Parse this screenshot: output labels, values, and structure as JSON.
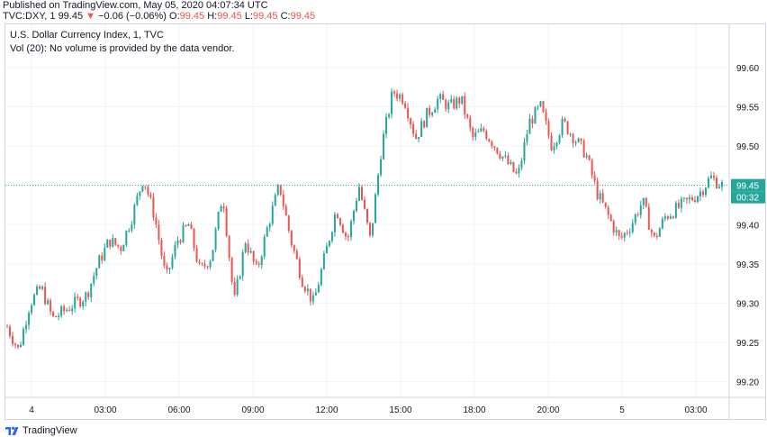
{
  "header": {
    "published": "Published on TradingView.com, May 05, 2020 04:07:34 UTC",
    "symbol": "TVC:DXY, 1",
    "last": "99.45",
    "change_arrow": "▼",
    "change": "−0.06 (−0.06%)",
    "o_label": "O:",
    "o_value": "99.45",
    "h_label": "H:",
    "h_value": "99.45",
    "l_label": "L:",
    "l_value": "99.45",
    "c_label": "C:",
    "c_value": "99.45"
  },
  "legend": {
    "title": "U.S. Dollar Currency Index, 1, TVC",
    "volume_note": "Vol (20): No volume is provided by the data vendor."
  },
  "footer": {
    "brand": "TradingView",
    "logo_icon": "tradingview-logo-icon"
  },
  "colors": {
    "up": "#26a69a",
    "down": "#ef5350",
    "price_line": "#26a69a",
    "grid": "#f0f3fa",
    "axis_text": "#131722"
  },
  "chart_data": {
    "type": "line",
    "subtype": "candlestick",
    "xlabel": "",
    "ylabel": "",
    "ylim": [
      99.18,
      99.655
    ],
    "y_ticks": [
      "99.60",
      "99.55",
      "99.50",
      "99.45",
      "99.40",
      "99.35",
      "99.30",
      "99.25",
      "99.20"
    ],
    "x_ticks": [
      "4",
      "03:00",
      "06:00",
      "09:00",
      "12:00",
      "15:00",
      "18:00",
      "20:00",
      "5",
      "03:00"
    ],
    "last_price_label": "99.45",
    "countdown_label": "00:32",
    "grid": true,
    "series": [
      {
        "x": [
          "4 00:00",
          "00:30",
          "01:00",
          "01:30",
          "02:00",
          "02:30",
          "03:00",
          "03:30",
          "04:00",
          "04:30",
          "05:00",
          "05:30",
          "06:00",
          "06:15",
          "06:30",
          "07:00",
          "07:30",
          "08:00",
          "08:30",
          "09:00",
          "09:20",
          "09:40",
          "10:00",
          "10:30",
          "11:00",
          "11:30",
          "12:00",
          "12:15",
          "12:30",
          "13:00",
          "13:30",
          "14:00",
          "14:10",
          "14:20",
          "14:40",
          "15:00",
          "15:20",
          "15:40",
          "16:00",
          "16:30",
          "17:00",
          "17:30",
          "18:00",
          "18:30",
          "19:00",
          "19:30",
          "20:00",
          "20:30",
          "21:00",
          "21:30",
          "22:00",
          "22:30",
          "23:00",
          "23:30",
          "5 00:00",
          "00:30",
          "01:00",
          "01:30",
          "02:00",
          "02:30",
          "03:00",
          "03:30",
          "03:45",
          "04:00"
        ],
        "values": [
          99.27,
          99.24,
          99.3,
          99.32,
          99.28,
          99.29,
          99.3,
          99.31,
          99.35,
          99.38,
          99.37,
          99.41,
          99.46,
          99.41,
          99.33,
          99.38,
          99.4,
          99.34,
          99.36,
          99.44,
          99.3,
          99.38,
          99.34,
          99.4,
          99.45,
          99.38,
          99.33,
          99.3,
          99.36,
          99.42,
          99.38,
          99.45,
          99.38,
          99.5,
          99.57,
          99.56,
          99.51,
          99.54,
          99.56,
          99.55,
          99.56,
          99.51,
          99.52,
          99.5,
          99.48,
          99.46,
          99.53,
          99.55,
          99.5,
          99.53,
          99.51,
          99.49,
          99.44,
          99.41,
          99.38,
          99.4,
          99.43,
          99.38,
          99.41,
          99.42,
          99.43,
          99.44,
          99.46,
          99.45
        ]
      }
    ]
  }
}
